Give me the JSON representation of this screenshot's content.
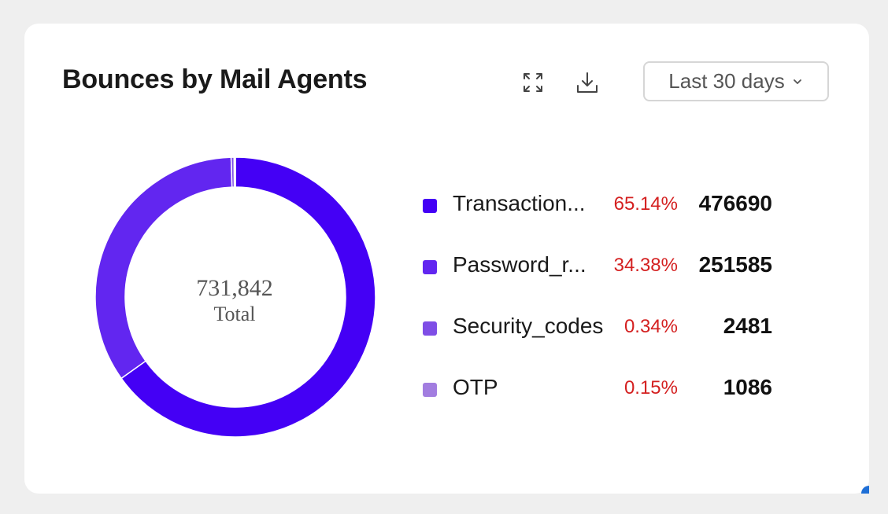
{
  "header": {
    "title": "Bounces by Mail Agents",
    "expand_icon": "expand-icon",
    "download_icon": "download-icon",
    "range_label": "Last 30 days",
    "range_chevron_icon": "chevron-down-icon"
  },
  "center": {
    "total_value": "731,842",
    "total_label": "Total"
  },
  "chart_data": {
    "type": "pie",
    "subtype": "donut",
    "title": "Bounces by Mail Agents",
    "total": 731842,
    "categories": [
      "Transaction...",
      "Password_r...",
      "Security_codes",
      "OTP"
    ],
    "values": [
      476690,
      251585,
      2481,
      1086
    ],
    "percentages": [
      "65.14%",
      "34.38%",
      "0.34%",
      "0.15%"
    ],
    "colors": [
      "#4400f5",
      "#6226f0",
      "#7f4ee6",
      "#a27de0"
    ],
    "legend_placement": "right"
  },
  "legend": [
    {
      "name": "Transaction...",
      "pct": "65.14%",
      "value": "476690"
    },
    {
      "name": "Password_r...",
      "pct": "34.38%",
      "value": "251585"
    },
    {
      "name": "Security_codes",
      "pct": "0.34%",
      "value": "2481"
    },
    {
      "name": "OTP",
      "pct": "0.15%",
      "value": "1086"
    }
  ]
}
